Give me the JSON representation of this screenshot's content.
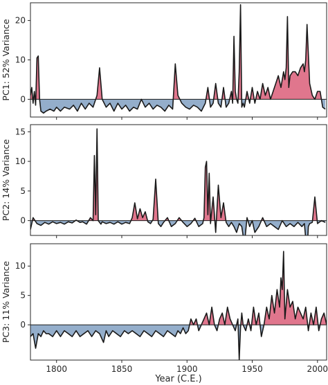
{
  "figure": {
    "xlabel": "Year (C.E.)"
  },
  "colors": {
    "positive": "#e0768d",
    "negative": "#94aecb",
    "line": "#1a1a1a",
    "axis": "#262626"
  },
  "chart_data": [
    {
      "type": "area",
      "ylabel": "PC1: 52% Variance",
      "xlim": [
        1780,
        2007
      ],
      "ylim": [
        -4.5,
        24.5
      ],
      "yticks": [
        0,
        10,
        20
      ],
      "xticks": [
        1800,
        1850,
        1900,
        1950,
        2000
      ],
      "xticklabels_visible": false,
      "baseline": 0,
      "x": [
        1780,
        1781,
        1782,
        1783,
        1784,
        1785,
        1786,
        1787,
        1788,
        1790,
        1792,
        1795,
        1798,
        1800,
        1803,
        1806,
        1810,
        1813,
        1816,
        1819,
        1822,
        1825,
        1828,
        1831,
        1833,
        1835,
        1838,
        1841,
        1844,
        1847,
        1850,
        1853,
        1856,
        1859,
        1862,
        1865,
        1868,
        1871,
        1874,
        1877,
        1880,
        1883,
        1886,
        1889,
        1891,
        1893,
        1896,
        1899,
        1902,
        1905,
        1908,
        1911,
        1914,
        1916,
        1918,
        1920,
        1922,
        1924,
        1926,
        1928,
        1930,
        1932,
        1934,
        1935,
        1936,
        1937,
        1938,
        1939,
        1940,
        1941,
        1942,
        1943,
        1944,
        1946,
        1948,
        1950,
        1952,
        1954,
        1956,
        1958,
        1960,
        1962,
        1964,
        1966,
        1968,
        1970,
        1972,
        1974,
        1975,
        1976,
        1977,
        1978,
        1979,
        1981,
        1983,
        1985,
        1987,
        1989,
        1990,
        1991,
        1992,
        1994,
        1996,
        1998,
        2000,
        2002,
        2004,
        2006
      ],
      "y": [
        1,
        3,
        -1,
        2,
        -1.5,
        10.5,
        11,
        0,
        -3,
        -3.5,
        -3,
        -2.5,
        -3,
        -2,
        -3,
        -2,
        -2.5,
        -1.5,
        -3,
        -1,
        -2.5,
        -1,
        -2,
        1,
        8,
        0,
        -2,
        -1,
        -3,
        -1,
        -2.5,
        -1.5,
        -3,
        -2,
        -2.5,
        0,
        -2,
        -1,
        -2.5,
        -1.5,
        -2,
        -3,
        -1.5,
        -2.5,
        9,
        1,
        -1,
        -2,
        -2.5,
        -1.5,
        -2,
        -3,
        -1,
        3,
        -2,
        -1,
        4,
        -1,
        -2,
        3,
        -2,
        -1,
        2,
        -1,
        16,
        2,
        0,
        -1,
        7,
        24,
        -2,
        -1,
        -2,
        2,
        -1,
        3,
        -1,
        2,
        0,
        4,
        1,
        3,
        0,
        2,
        4,
        6,
        3,
        7,
        5,
        8,
        21,
        3,
        6,
        7,
        7,
        6,
        8,
        9,
        7,
        10,
        19,
        4,
        1,
        0,
        2,
        2,
        -2,
        -2.5
      ]
    },
    {
      "type": "area",
      "ylabel": "PC2: 14% Variance",
      "xlim": [
        1780,
        2007
      ],
      "ylim": [
        -2.5,
        16.2
      ],
      "yticks": [
        0,
        5,
        10,
        15
      ],
      "xticks": [
        1800,
        1850,
        1900,
        1950,
        2000
      ],
      "xticklabels_visible": false,
      "baseline": 0,
      "x": [
        1780,
        1782,
        1785,
        1788,
        1791,
        1794,
        1797,
        1800,
        1803,
        1806,
        1809,
        1812,
        1815,
        1818,
        1820,
        1823,
        1826,
        1828,
        1829,
        1830,
        1831,
        1832,
        1833,
        1834,
        1835,
        1838,
        1841,
        1844,
        1847,
        1850,
        1853,
        1856,
        1858,
        1860,
        1862,
        1864,
        1866,
        1868,
        1870,
        1872,
        1874,
        1876,
        1878,
        1880,
        1882,
        1885,
        1888,
        1891,
        1894,
        1897,
        1900,
        1903,
        1906,
        1909,
        1912,
        1913,
        1914,
        1915,
        1916,
        1917,
        1918,
        1920,
        1922,
        1924,
        1926,
        1928,
        1930,
        1932,
        1934,
        1936,
        1938,
        1940,
        1942,
        1944,
        1946,
        1948,
        1950,
        1952,
        1955,
        1958,
        1961,
        1964,
        1967,
        1970,
        1973,
        1976,
        1979,
        1982,
        1985,
        1988,
        1990,
        1992,
        1993,
        1994,
        1996,
        1998,
        2000,
        2003,
        2006
      ],
      "y": [
        -1.5,
        0.5,
        -0.5,
        -0.8,
        -0.3,
        -0.6,
        -0.2,
        -0.5,
        -0.3,
        -0.6,
        -0.2,
        -0.4,
        0.1,
        -0.3,
        -0.2,
        -0.6,
        0.5,
        0,
        11,
        1,
        15.5,
        0,
        -0.3,
        -0.6,
        -0.2,
        -0.5,
        -0.3,
        -0.6,
        -0.2,
        -0.6,
        -0.3,
        -0.5,
        0.5,
        3,
        0.3,
        2,
        0.5,
        1.5,
        -0.2,
        -0.5,
        0.2,
        7,
        -0.5,
        -1,
        -0.3,
        0.5,
        -1,
        -0.5,
        0.5,
        -0.3,
        -1,
        -0.5,
        0.4,
        -1,
        -0.5,
        0.5,
        9,
        10,
        1,
        8,
        -0.5,
        4,
        -2,
        6,
        0.5,
        3,
        -0.3,
        -1,
        -0.3,
        -1,
        -2,
        -0.5,
        -1,
        -4,
        0.5,
        -1,
        0,
        -2,
        -1,
        0.5,
        -1,
        -0.5,
        -1,
        -1.5,
        0,
        -1,
        -0.5,
        -1,
        -0.3,
        -1,
        -0.5,
        -5.5,
        -1,
        -0.5,
        -0.3,
        4,
        -0.5,
        0,
        -0.3
      ]
    },
    {
      "type": "area",
      "ylabel": "PC3: 11% Variance",
      "xlim": [
        1780,
        2007
      ],
      "ylim": [
        -6,
        13.8
      ],
      "yticks": [
        0,
        5,
        10
      ],
      "xticks": [
        1800,
        1850,
        1900,
        1950,
        2000
      ],
      "xticklabels": [
        "1800",
        "1850",
        "1900",
        "1950",
        "2000"
      ],
      "xticklabels_visible": true,
      "baseline": 0,
      "x": [
        1780,
        1782,
        1784,
        1786,
        1788,
        1790,
        1792,
        1794,
        1797,
        1800,
        1803,
        1806,
        1809,
        1812,
        1815,
        1818,
        1821,
        1824,
        1827,
        1830,
        1833,
        1836,
        1838,
        1840,
        1843,
        1846,
        1849,
        1852,
        1855,
        1858,
        1861,
        1864,
        1867,
        1870,
        1873,
        1876,
        1879,
        1882,
        1885,
        1888,
        1891,
        1893,
        1895,
        1897,
        1899,
        1901,
        1903,
        1905,
        1907,
        1909,
        1911,
        1913,
        1915,
        1917,
        1919,
        1921,
        1923,
        1925,
        1927,
        1929,
        1931,
        1933,
        1935,
        1937,
        1939,
        1940,
        1941,
        1942,
        1943,
        1945,
        1947,
        1949,
        1951,
        1953,
        1955,
        1957,
        1959,
        1961,
        1963,
        1965,
        1967,
        1969,
        1971,
        1972,
        1973,
        1974,
        1975,
        1977,
        1979,
        1981,
        1983,
        1985,
        1987,
        1989,
        1991,
        1993,
        1995,
        1997,
        1999,
        2001,
        2003,
        2005,
        2007
      ],
      "y": [
        -2,
        -1.5,
        -4,
        -1.5,
        -2,
        -1,
        -1.5,
        -1.5,
        -2,
        -1,
        -2,
        -1,
        -1.5,
        -2,
        -1,
        -2,
        -1.5,
        -1,
        -2,
        -1,
        -1.5,
        -3,
        -1,
        -2,
        -1,
        -1.5,
        -2,
        -1,
        -1.5,
        -1,
        -1.5,
        -2,
        -1,
        -1.5,
        -2,
        -1,
        -1.5,
        -2,
        -1,
        -1.5,
        -2,
        -1,
        -1.5,
        -0.5,
        -1.5,
        -1,
        1,
        0,
        1,
        -1,
        0,
        1,
        2,
        0,
        3,
        0,
        -1,
        1,
        2,
        0,
        3,
        1,
        0,
        -1,
        1,
        -6,
        -0.5,
        2,
        0,
        -1,
        1,
        -1,
        3,
        0,
        2,
        -2,
        0,
        3,
        1,
        5,
        2,
        6,
        3,
        8,
        6,
        12.5,
        1,
        6,
        3,
        4,
        1,
        3,
        2,
        1,
        3,
        -1,
        2,
        0,
        3,
        -1,
        1,
        2,
        0
      ]
    }
  ]
}
